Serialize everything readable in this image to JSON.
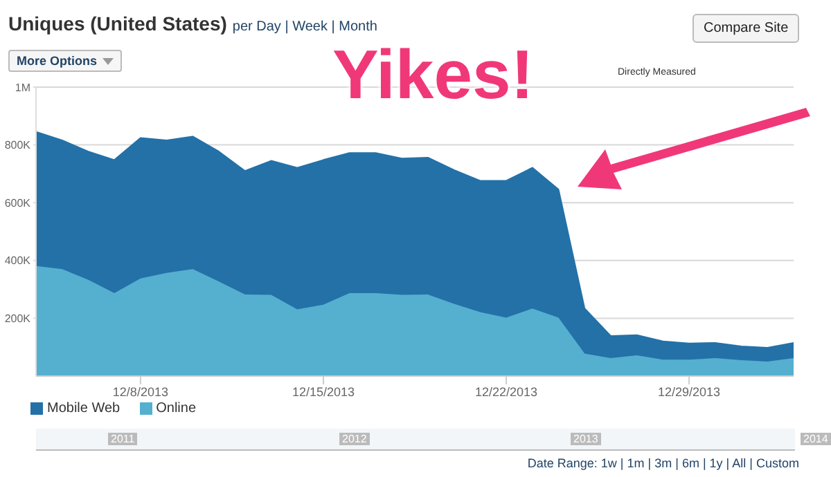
{
  "chart_data": {
    "type": "area",
    "title": "Uniques (United States)",
    "stacked": true,
    "grid": "y",
    "legend": "bottom left",
    "x": [
      "2013-12-04",
      "2013-12-05",
      "2013-12-06",
      "2013-12-07",
      "2013-12-08",
      "2013-12-09",
      "2013-12-10",
      "2013-12-11",
      "2013-12-12",
      "2013-12-13",
      "2013-12-14",
      "2013-12-15",
      "2013-12-16",
      "2013-12-17",
      "2013-12-18",
      "2013-12-19",
      "2013-12-20",
      "2013-12-21",
      "2013-12-22",
      "2013-12-23",
      "2013-12-24",
      "2013-12-25",
      "2013-12-26",
      "2013-12-27",
      "2013-12-28",
      "2013-12-29",
      "2013-12-30",
      "2013-12-31",
      "2014-01-01",
      "2014-01-02"
    ],
    "series": [
      {
        "name": "Online",
        "color": "#55b0d0",
        "values": [
          381000,
          370000,
          333000,
          287000,
          338000,
          357000,
          370000,
          327000,
          282000,
          281000,
          231000,
          247000,
          287000,
          287000,
          281000,
          282000,
          250000,
          221000,
          202000,
          234000,
          202000,
          78000,
          62000,
          72000,
          57000,
          57000,
          62000,
          55000,
          50000,
          62000
        ]
      },
      {
        "name": "Mobile Web",
        "color": "#2471a8",
        "values": [
          464000,
          446000,
          444000,
          461000,
          486000,
          459000,
          459000,
          450000,
          428000,
          464000,
          490000,
          501000,
          485000,
          485000,
          472000,
          474000,
          463000,
          455000,
          474000,
          487000,
          444000,
          156000,
          77000,
          70000,
          63000,
          56000,
          53000,
          48000,
          48000,
          53000
        ]
      }
    ],
    "xlim": [
      "2013-12-04",
      "2014-01-02"
    ],
    "xticks": [
      {
        "value": "2013-12-08",
        "label": "12/8/2013"
      },
      {
        "value": "2013-12-15",
        "label": "12/15/2013"
      },
      {
        "value": "2013-12-22",
        "label": "12/22/2013"
      },
      {
        "value": "2013-12-29",
        "label": "12/29/2013"
      }
    ],
    "ylim": [
      0,
      1000000
    ],
    "yticks": [
      {
        "value": 200000,
        "label": "200K"
      },
      {
        "value": 400000,
        "label": "400K"
      },
      {
        "value": 600000,
        "label": "600K"
      },
      {
        "value": 800000,
        "label": "800K"
      },
      {
        "value": 1000000,
        "label": "1M"
      }
    ],
    "annotations": [
      "per Day | Week | Month",
      "More Options",
      "Compare Site",
      "Yikes!",
      "Directly Measured",
      "Date Range: 1w | 1m | 3m | 6m | 1y | All | Custom",
      "2011",
      "2012",
      "2013",
      "2014"
    ]
  }
}
